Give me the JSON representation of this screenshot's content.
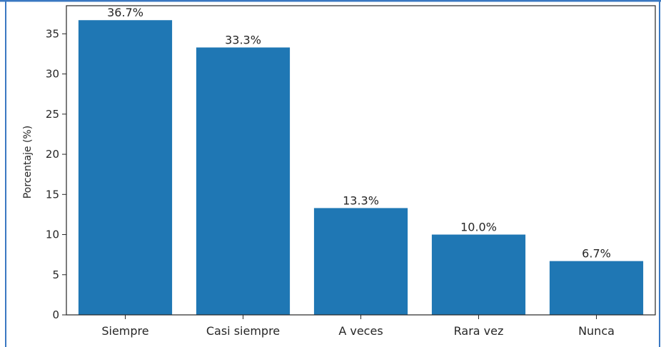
{
  "chart_data": {
    "type": "bar",
    "categories": [
      "Siempre",
      "Casi siempre",
      "A veces",
      "Rara vez",
      "Nunca"
    ],
    "values": [
      36.7,
      33.3,
      13.3,
      10.0,
      6.7
    ],
    "data_labels": [
      "36.7%",
      "33.3%",
      "13.3%",
      "10.0%",
      "6.7%"
    ],
    "title": "",
    "xlabel": "",
    "ylabel": "Porcentaje (%)",
    "ylim": [
      0,
      38.5
    ],
    "yticks": [
      0,
      5,
      10,
      15,
      20,
      25,
      30,
      35
    ],
    "grid": false,
    "legend": "none",
    "bar_color": "#1f77b4",
    "frame_color": "#3a78c2"
  }
}
